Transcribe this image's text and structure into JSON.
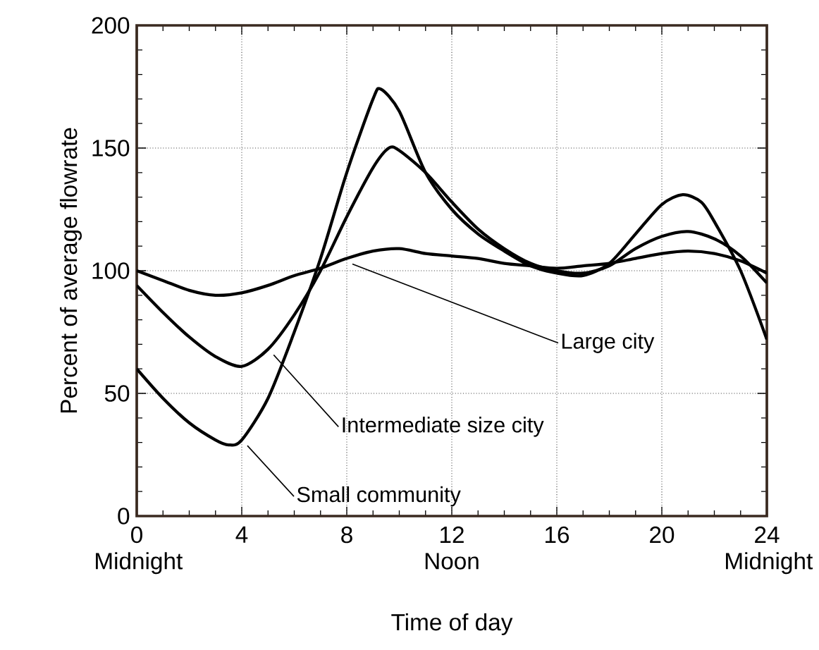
{
  "chart_data": {
    "type": "line",
    "xlabel": "Time of day",
    "ylabel": "Percent of average flowrate",
    "xlim": [
      0,
      24
    ],
    "ylim": [
      0,
      200
    ],
    "xticks": [
      {
        "value": 0,
        "label": "0 Midnight"
      },
      4,
      8,
      {
        "value": 12,
        "label": "12 Noon"
      },
      16,
      20,
      {
        "value": 24,
        "label": "24 Midnight"
      }
    ],
    "yticks": [
      0,
      50,
      100,
      150,
      200
    ],
    "grid": true,
    "legend": false,
    "line_style": "solid",
    "marker": "none",
    "series": [
      {
        "name": "Large city",
        "color": "#000000",
        "x": [
          0,
          1,
          2,
          3,
          4,
          5,
          6,
          7,
          8,
          9,
          10,
          11,
          12,
          13,
          14,
          15,
          16,
          17,
          18,
          19,
          20,
          21,
          22,
          23,
          24
        ],
        "values": [
          100,
          96,
          92,
          90,
          91,
          94,
          98,
          101,
          105,
          108,
          109,
          107,
          106,
          105,
          103,
          102,
          101,
          102,
          103,
          105,
          107,
          108,
          107,
          104,
          99
        ]
      },
      {
        "name": "Intermediate size city",
        "color": "#000000",
        "x": [
          0,
          1,
          2,
          3,
          4,
          5,
          6,
          7,
          8,
          9,
          9.6,
          10,
          11,
          12,
          13,
          14,
          15,
          16,
          17,
          18,
          19,
          20,
          21,
          22,
          23,
          24
        ],
        "values": [
          94,
          83,
          73,
          65,
          61,
          68,
          82,
          100,
          122,
          142,
          150,
          149,
          140,
          128,
          117,
          109,
          103,
          100,
          99,
          102,
          109,
          114,
          116,
          113,
          106,
          95
        ]
      },
      {
        "name": "Small community",
        "color": "#000000",
        "x": [
          0,
          1,
          2,
          3,
          3.5,
          4,
          5,
          6,
          7,
          8,
          9,
          9.3,
          10,
          11,
          12,
          13,
          14,
          15,
          16,
          17,
          18,
          19,
          20,
          20.8,
          21.5,
          22,
          23,
          24
        ],
        "values": [
          60,
          48,
          38,
          31,
          29,
          31,
          48,
          75,
          105,
          140,
          170,
          174,
          165,
          140,
          125,
          115,
          108,
          102,
          99,
          98,
          103,
          115,
          127,
          131,
          128,
          120,
          100,
          72
        ]
      }
    ]
  }
}
